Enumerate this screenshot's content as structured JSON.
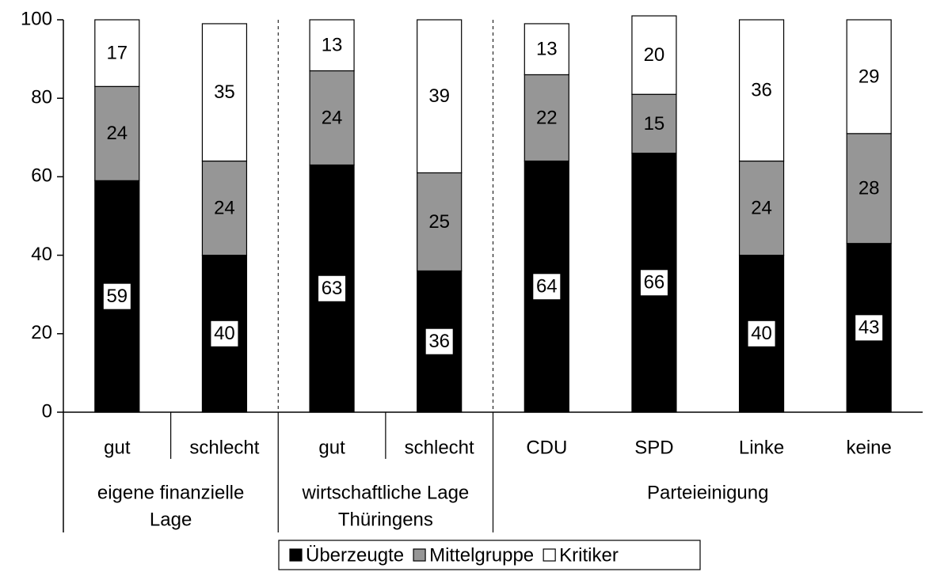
{
  "chart_data": {
    "type": "stacked-bar",
    "groups": [
      {
        "name": [
          "eigene finanzielle",
          "Lage"
        ],
        "categories": [
          "gut",
          "schlecht"
        ]
      },
      {
        "name": [
          "wirtschaftliche Lage",
          "Thüringens"
        ],
        "categories": [
          "gut",
          "schlecht"
        ]
      },
      {
        "name": [
          "Parteieinigung"
        ],
        "categories": [
          "CDU",
          "SPD",
          "Linke",
          "keine"
        ]
      }
    ],
    "series": [
      {
        "name": "Überzeugte",
        "color": "#000000",
        "values": [
          59,
          40,
          63,
          36,
          64,
          66,
          40,
          43
        ]
      },
      {
        "name": "Mittelgruppe",
        "color": "#969696",
        "values": [
          24,
          24,
          24,
          25,
          22,
          15,
          24,
          28
        ]
      },
      {
        "name": "Kritiker",
        "color": "#ffffff",
        "values": [
          17,
          35,
          13,
          39,
          13,
          20,
          36,
          29
        ]
      }
    ],
    "ylim": [
      0,
      100
    ],
    "yticks": [
      0,
      20,
      40,
      60,
      80,
      100
    ]
  }
}
